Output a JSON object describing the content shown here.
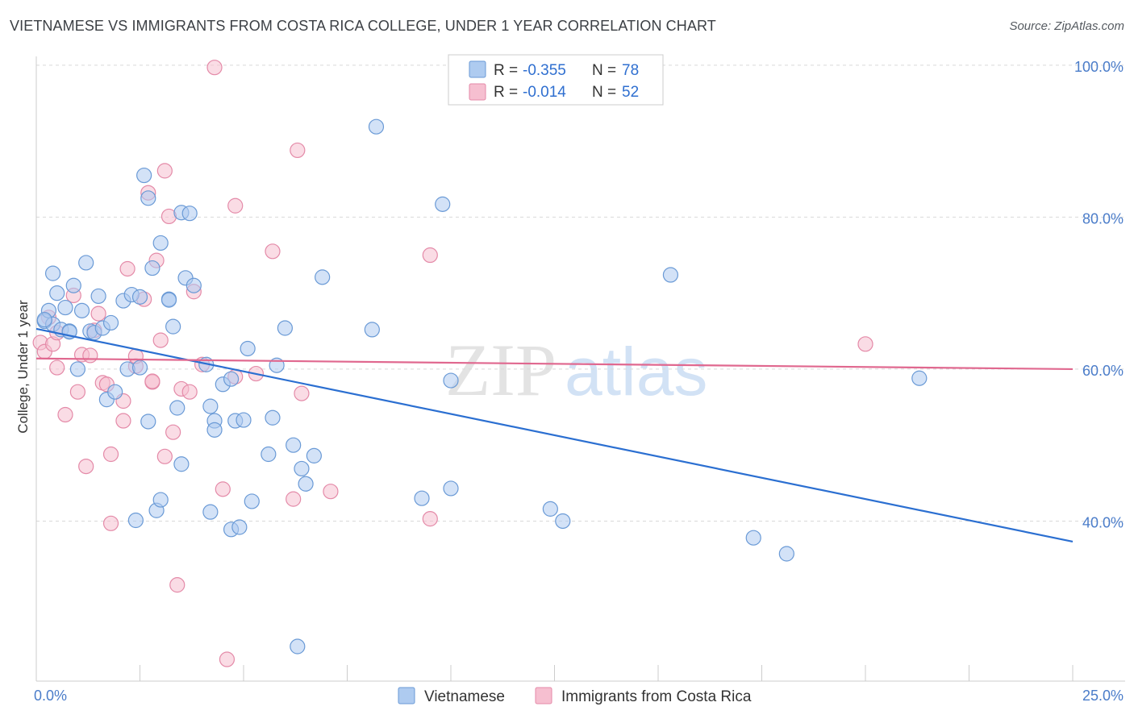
{
  "title": "VIETNAMESE VS IMMIGRANTS FROM COSTA RICA COLLEGE, UNDER 1 YEAR CORRELATION CHART",
  "source": "Source: ZipAtlas.com",
  "watermark": {
    "zip": "ZIP",
    "atlas": "atlas"
  },
  "colors": {
    "blue_fill": "#aecbf0",
    "blue_stroke": "#6a9ad6",
    "blue_line": "#2b6fd1",
    "pink_fill": "#f6bfd0",
    "pink_stroke": "#e48aa8",
    "pink_line": "#e0688f",
    "grid": "#d9d9d9",
    "axis_text": "#4a7cc9"
  },
  "legend": {
    "r_label": "R =",
    "n_label": "N =",
    "series": [
      {
        "r": "-0.355",
        "n": "78"
      },
      {
        "r": "-0.014",
        "n": "52"
      }
    ]
  },
  "chart_data": {
    "type": "scatter",
    "title": "VIETNAMESE VS IMMIGRANTS FROM COSTA RICA COLLEGE, UNDER 1 YEAR CORRELATION CHART",
    "xlabel": "",
    "ylabel": "College, Under 1 year",
    "xlim": [
      0,
      25
    ],
    "ylim": [
      20,
      102
    ],
    "x_tick_labels": [
      "0.0%",
      "25.0%"
    ],
    "y_ticks": [
      40,
      60,
      80,
      100
    ],
    "y_tick_labels": [
      "40.0%",
      "60.0%",
      "80.0%",
      "100.0%"
    ],
    "grid": true,
    "series": [
      {
        "name": "Vietnamese",
        "trend": {
          "x0": 0,
          "y0": 65.3,
          "x1": 25,
          "y1": 37.3
        },
        "points": [
          [
            0.2,
            66.3
          ],
          [
            0.3,
            67.7
          ],
          [
            0.4,
            65.9
          ],
          [
            0.5,
            70.0
          ],
          [
            0.4,
            72.6
          ],
          [
            0.6,
            65.2
          ],
          [
            0.7,
            68.1
          ],
          [
            0.8,
            65.0
          ],
          [
            0.9,
            71.0
          ],
          [
            1.0,
            60.0
          ],
          [
            1.1,
            67.7
          ],
          [
            1.2,
            74.0
          ],
          [
            1.3,
            65.0
          ],
          [
            1.4,
            64.8
          ],
          [
            1.5,
            69.6
          ],
          [
            1.6,
            65.4
          ],
          [
            1.7,
            56.0
          ],
          [
            1.8,
            66.1
          ],
          [
            1.9,
            57.0
          ],
          [
            2.1,
            69.0
          ],
          [
            2.2,
            60.0
          ],
          [
            2.3,
            69.8
          ],
          [
            2.4,
            40.1
          ],
          [
            2.5,
            60.2
          ],
          [
            2.5,
            69.5
          ],
          [
            2.6,
            85.5
          ],
          [
            2.7,
            82.5
          ],
          [
            2.7,
            53.1
          ],
          [
            2.8,
            73.3
          ],
          [
            2.9,
            41.4
          ],
          [
            3.0,
            42.8
          ],
          [
            3.0,
            76.6
          ],
          [
            3.2,
            69.2
          ],
          [
            3.2,
            69.1
          ],
          [
            3.3,
            65.6
          ],
          [
            3.4,
            54.9
          ],
          [
            3.5,
            47.5
          ],
          [
            3.5,
            80.6
          ],
          [
            3.6,
            72.0
          ],
          [
            3.7,
            80.5
          ],
          [
            3.8,
            71.0
          ],
          [
            4.1,
            60.6
          ],
          [
            4.2,
            55.1
          ],
          [
            4.3,
            53.2
          ],
          [
            4.3,
            52.0
          ],
          [
            4.2,
            41.2
          ],
          [
            4.5,
            58.0
          ],
          [
            4.7,
            38.9
          ],
          [
            4.7,
            58.7
          ],
          [
            4.8,
            53.2
          ],
          [
            4.9,
            39.2
          ],
          [
            5.0,
            53.3
          ],
          [
            5.1,
            62.7
          ],
          [
            5.2,
            42.6
          ],
          [
            5.6,
            48.8
          ],
          [
            5.7,
            53.6
          ],
          [
            5.8,
            60.5
          ],
          [
            6.0,
            65.4
          ],
          [
            6.2,
            50.0
          ],
          [
            6.3,
            23.5
          ],
          [
            6.4,
            46.9
          ],
          [
            6.5,
            44.9
          ],
          [
            6.7,
            48.6
          ],
          [
            6.9,
            72.1
          ],
          [
            8.1,
            65.2
          ],
          [
            8.2,
            91.9
          ],
          [
            9.3,
            43.0
          ],
          [
            9.8,
            81.7
          ],
          [
            10.0,
            44.3
          ],
          [
            10.0,
            58.5
          ],
          [
            12.4,
            41.6
          ],
          [
            12.7,
            40.0
          ],
          [
            15.3,
            72.4
          ],
          [
            17.3,
            37.8
          ],
          [
            18.1,
            35.7
          ],
          [
            21.3,
            58.8
          ],
          [
            0.2,
            66.5
          ],
          [
            0.8,
            64.9
          ]
        ]
      },
      {
        "name": "Immigrants from Costa Rica",
        "trend": {
          "x0": 0,
          "y0": 61.4,
          "x1": 25,
          "y1": 60.0
        },
        "points": [
          [
            0.1,
            63.5
          ],
          [
            0.2,
            62.3
          ],
          [
            0.3,
            66.8
          ],
          [
            0.4,
            63.3
          ],
          [
            0.5,
            64.8
          ],
          [
            0.5,
            60.2
          ],
          [
            0.7,
            54.0
          ],
          [
            0.9,
            69.7
          ],
          [
            1.0,
            57.0
          ],
          [
            1.1,
            61.9
          ],
          [
            1.2,
            47.2
          ],
          [
            1.3,
            61.8
          ],
          [
            1.4,
            65.1
          ],
          [
            1.5,
            67.3
          ],
          [
            1.6,
            58.2
          ],
          [
            1.7,
            58.0
          ],
          [
            1.8,
            48.8
          ],
          [
            1.8,
            39.7
          ],
          [
            2.1,
            55.8
          ],
          [
            2.1,
            53.2
          ],
          [
            2.2,
            73.2
          ],
          [
            2.4,
            60.4
          ],
          [
            2.4,
            61.7
          ],
          [
            2.6,
            69.2
          ],
          [
            2.7,
            83.2
          ],
          [
            2.8,
            58.3
          ],
          [
            2.8,
            58.4
          ],
          [
            2.9,
            74.3
          ],
          [
            3.0,
            63.8
          ],
          [
            3.1,
            86.1
          ],
          [
            3.1,
            48.5
          ],
          [
            3.2,
            80.1
          ],
          [
            3.3,
            51.7
          ],
          [
            3.4,
            31.6
          ],
          [
            3.5,
            57.4
          ],
          [
            3.7,
            57.0
          ],
          [
            3.8,
            70.2
          ],
          [
            4.0,
            60.6
          ],
          [
            4.3,
            99.7
          ],
          [
            4.5,
            44.2
          ],
          [
            4.6,
            21.8
          ],
          [
            4.8,
            81.5
          ],
          [
            4.8,
            59.0
          ],
          [
            5.3,
            59.4
          ],
          [
            5.7,
            75.5
          ],
          [
            6.2,
            42.9
          ],
          [
            6.3,
            88.8
          ],
          [
            6.4,
            56.8
          ],
          [
            7.1,
            43.9
          ],
          [
            9.5,
            40.3
          ],
          [
            9.5,
            75.0
          ],
          [
            20.0,
            63.3
          ]
        ]
      }
    ]
  },
  "bottom_legend": [
    "Vietnamese",
    "Immigrants from Costa Rica"
  ]
}
